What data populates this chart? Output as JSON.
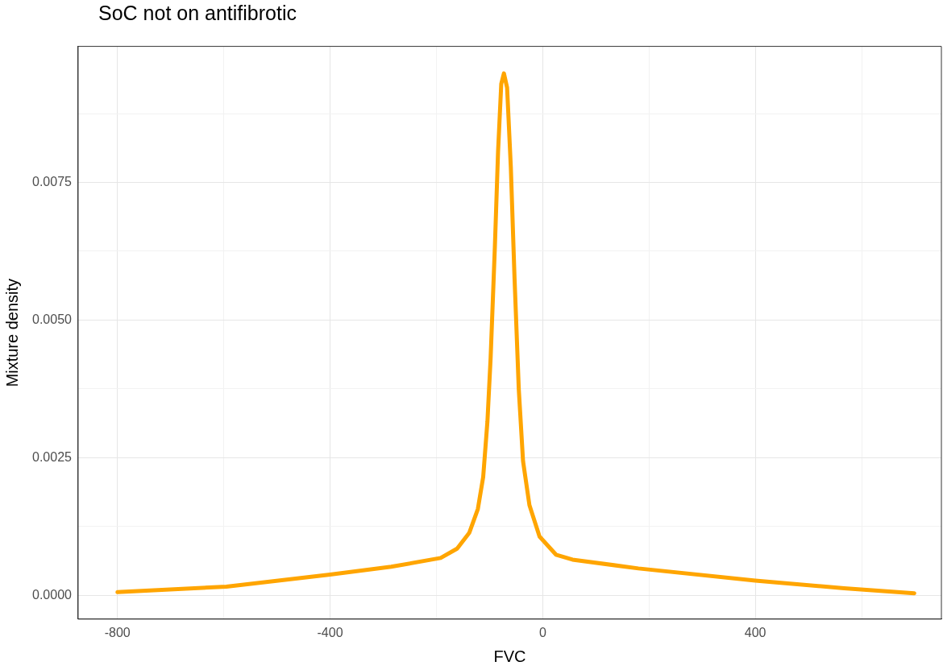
{
  "chart_data": {
    "type": "line",
    "title": "SoC not on antifibrotic",
    "xlabel": "FVC",
    "ylabel": "Mixture density",
    "series": [
      {
        "color": "#ffa500",
        "x": [
          -800,
          -595,
          -400,
          -285,
          -192,
          -161,
          -138,
          -122,
          -112,
          -104,
          -98,
          -90,
          -84,
          -78,
          -73,
          -67,
          -60,
          -53,
          -45,
          -37,
          -25,
          -6,
          25,
          56,
          180,
          400,
          567,
          699
        ],
        "values": [
          6e-05,
          0.00016,
          0.00038,
          0.00052,
          0.00068,
          0.00085,
          0.00114,
          0.00157,
          0.00215,
          0.00316,
          0.00431,
          0.00633,
          0.00806,
          0.00929,
          0.00948,
          0.00922,
          0.00778,
          0.00576,
          0.00374,
          0.00244,
          0.00164,
          0.00107,
          0.00074,
          0.00065,
          0.00049,
          0.00027,
          0.00013,
          4e-05
        ]
      }
    ],
    "xlim": [
      -874,
      750
    ],
    "ylim": [
      -0.00043,
      0.00997
    ],
    "xticks": [
      -800,
      {
        "value": -600,
        "label": null
      },
      -400,
      {
        "value": -200,
        "label": null
      },
      0,
      {
        "value": 200,
        "label": null
      },
      400,
      {
        "value": 600,
        "label": null
      }
    ],
    "yticks": [
      {
        "value": 0,
        "label": "0.0000"
      },
      {
        "value": 0.00125,
        "label": null
      },
      {
        "value": 0.0025,
        "label": "0.0025"
      },
      {
        "value": 0.00375,
        "label": null
      },
      {
        "value": 0.005,
        "label": "0.0050"
      },
      {
        "value": 0.00625,
        "label": null
      },
      {
        "value": 0.0075,
        "label": "0.0075"
      },
      {
        "value": 0.00875,
        "label": null
      }
    ],
    "grid": true,
    "legend": false,
    "marker": "none",
    "line_style": "solid"
  }
}
